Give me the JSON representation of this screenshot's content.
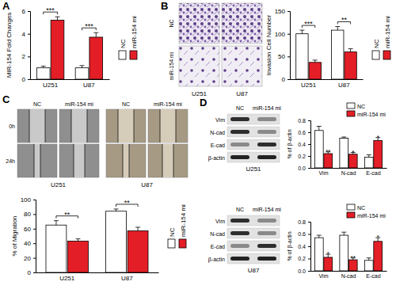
{
  "figure": {
    "panels": [
      "A",
      "B",
      "C",
      "D"
    ],
    "invasion_images": {
      "rows": [
        "NC",
        "miR-154 mi"
      ],
      "columns": [
        "U251",
        "U87"
      ]
    },
    "wound_images": {
      "cell_lines": [
        "U251",
        "U87"
      ],
      "conditions": [
        "NC",
        "miR-154 mi"
      ],
      "times": [
        "0h",
        "24h"
      ]
    },
    "blots": [
      {
        "cell_line": "U251",
        "conditions": [
          "NC",
          "miR-154 mi"
        ],
        "proteins": [
          "Vim",
          "N-cad",
          "E-cad",
          "β-actin"
        ]
      },
      {
        "cell_line": "U87",
        "conditions": [
          "NC",
          "miR-154 mi"
        ],
        "proteins": [
          "Vim",
          "N-cad",
          "E-cad",
          "β-actin"
        ]
      }
    ]
  },
  "chart_data": [
    {
      "type": "bar",
      "ylabel": "MIR-154 Fold Changes",
      "categories": [
        "U251",
        "U87"
      ],
      "series": [
        {
          "name": "NC",
          "color": "#ffffff",
          "values": [
            1.0,
            1.0
          ],
          "error": [
            0.15,
            0.2
          ]
        },
        {
          "name": "miR-154 mi",
          "color": "#e41e26",
          "values": [
            5.2,
            3.7
          ],
          "error": [
            0.3,
            0.4
          ]
        }
      ],
      "annotations": [
        "***",
        "***"
      ],
      "ylim": [
        0,
        6
      ],
      "yticks": [
        0,
        2,
        4,
        6
      ],
      "legend": "right"
    },
    {
      "type": "bar",
      "ylabel": "Invasion Cell Number",
      "categories": [
        "U251",
        "U87"
      ],
      "series": [
        {
          "name": "NC",
          "color": "#ffffff",
          "values": [
            100,
            108
          ],
          "error": [
            8,
            8
          ]
        },
        {
          "name": "miR-154 mi",
          "color": "#e41e26",
          "values": [
            37,
            60
          ],
          "error": [
            5,
            7
          ]
        }
      ],
      "annotations": [
        "***",
        "**"
      ],
      "ylim": [
        0,
        150
      ],
      "yticks": [
        0,
        50,
        100,
        150
      ],
      "legend": "right"
    },
    {
      "type": "bar",
      "ylabel": "% of Migration",
      "categories": [
        "U251",
        "U87"
      ],
      "series": [
        {
          "name": "NC",
          "color": "#ffffff",
          "values": [
            65,
            84
          ],
          "error": [
            6,
            3
          ]
        },
        {
          "name": "miR-154 mi",
          "color": "#e41e26",
          "values": [
            43,
            57
          ],
          "error": [
            3,
            5
          ]
        }
      ],
      "annotations": [
        "**",
        "**"
      ],
      "ylim": [
        0,
        100
      ],
      "yticks": [
        0,
        20,
        40,
        60,
        80,
        100
      ],
      "legend": "right"
    },
    {
      "type": "bar",
      "ylabel": "% of β-actin",
      "categories": [
        "Vim",
        "N-cad",
        "E-cad"
      ],
      "series": [
        {
          "name": "NC",
          "color": "#ffffff",
          "values": [
            0.63,
            0.5,
            0.18
          ],
          "error": [
            0.07,
            0.02,
            0.04
          ]
        },
        {
          "name": "miR-154 mi",
          "color": "#e41e26",
          "values": [
            0.24,
            0.23,
            0.46
          ],
          "error": [
            0.03,
            0.03,
            0.05
          ]
        }
      ],
      "annotations": [
        "**",
        "*",
        "*"
      ],
      "ylim": [
        0,
        0.8
      ],
      "yticks": [
        {
          "value": 0,
          "label": "0.0"
        },
        0.2,
        0.4,
        0.6,
        0.8
      ],
      "legend": "upper right"
    },
    {
      "type": "bar",
      "ylabel": "% of β-actin",
      "categories": [
        "Vim",
        "N-cad",
        "E-cad"
      ],
      "series": [
        {
          "name": "NC",
          "color": "#ffffff",
          "values": [
            0.54,
            0.58,
            0.17
          ],
          "error": [
            0.04,
            0.05,
            0.04
          ]
        },
        {
          "name": "miR-154 mi",
          "color": "#e41e26",
          "values": [
            0.22,
            0.18,
            0.48
          ],
          "error": [
            0.05,
            0.03,
            0.06
          ]
        }
      ],
      "annotations": [
        "*",
        "**",
        "*"
      ],
      "ylim": [
        0,
        0.8
      ],
      "yticks": [
        {
          "value": 0,
          "label": "0.0"
        },
        0.2,
        0.4,
        0.6,
        0.8
      ],
      "legend": "upper right"
    }
  ]
}
